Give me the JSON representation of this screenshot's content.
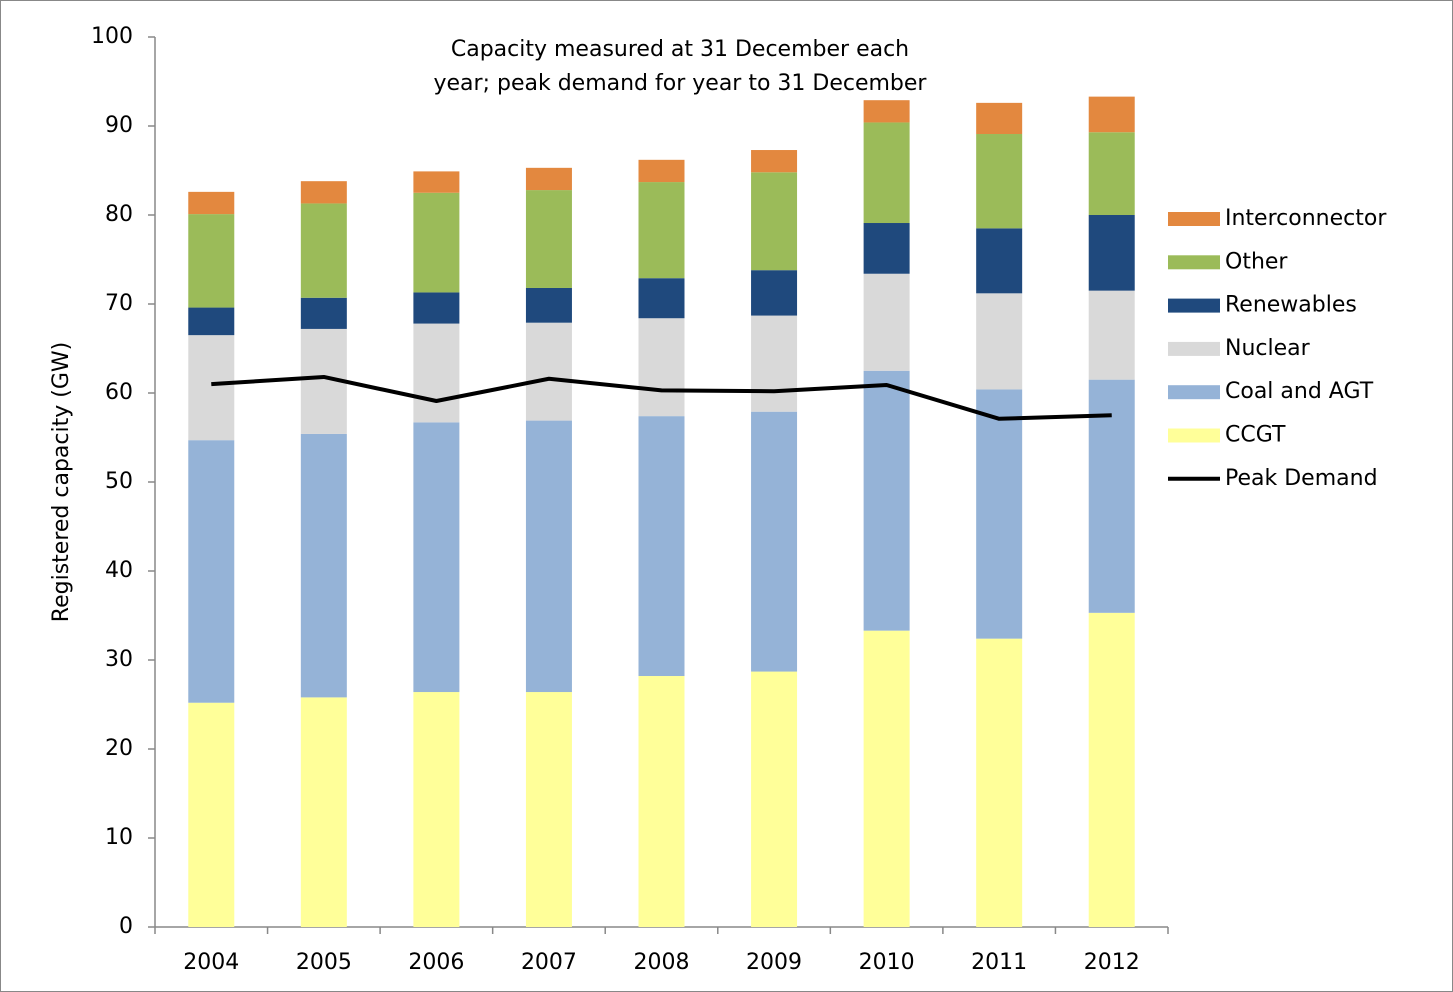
{
  "chart_data": {
    "type": "stacked-bar-line",
    "title_lines": [
      "Capacity measured at 31 December each",
      "year; peak demand for year to 31 December"
    ],
    "y_label": "Registered capacity (GW)",
    "categories": [
      "2004",
      "2005",
      "2006",
      "2007",
      "2008",
      "2009",
      "2010",
      "2011",
      "2012"
    ],
    "series": [
      {
        "name": "CCGT",
        "color": "#ffff99",
        "kind": "bar",
        "values": [
          25.2,
          25.8,
          26.4,
          26.4,
          28.2,
          28.7,
          33.3,
          32.4,
          35.3
        ]
      },
      {
        "name": "Coal and AGT",
        "color": "#95b3d7",
        "kind": "bar",
        "values": [
          29.5,
          29.6,
          30.3,
          30.5,
          29.2,
          29.2,
          29.2,
          28.0,
          26.2
        ]
      },
      {
        "name": "Nuclear",
        "color": "#d9d9d9",
        "kind": "bar",
        "values": [
          11.8,
          11.8,
          11.1,
          11.0,
          11.0,
          10.8,
          10.9,
          10.8,
          10.0
        ]
      },
      {
        "name": "Renewables",
        "color": "#1f497d",
        "kind": "bar",
        "values": [
          3.1,
          3.5,
          3.5,
          3.9,
          4.5,
          5.1,
          5.7,
          7.3,
          8.5
        ]
      },
      {
        "name": "Other",
        "color": "#9bbb59",
        "kind": "bar",
        "values": [
          10.5,
          10.6,
          11.2,
          11.0,
          10.8,
          11.0,
          11.3,
          10.6,
          9.3
        ]
      },
      {
        "name": "Interconnector",
        "color": "#e3883f",
        "kind": "bar",
        "values": [
          2.5,
          2.5,
          2.4,
          2.5,
          2.5,
          2.5,
          2.5,
          3.5,
          4.0
        ]
      },
      {
        "name": "Peak Demand",
        "color": "#000000",
        "kind": "line",
        "values": [
          61.0,
          61.8,
          59.1,
          61.6,
          60.3,
          60.2,
          60.9,
          57.1,
          57.5
        ]
      }
    ],
    "ylim": [
      0,
      100
    ],
    "yticks": [
      0,
      10,
      20,
      30,
      40,
      50,
      60,
      70,
      80,
      90,
      100
    ],
    "legend": "right"
  }
}
